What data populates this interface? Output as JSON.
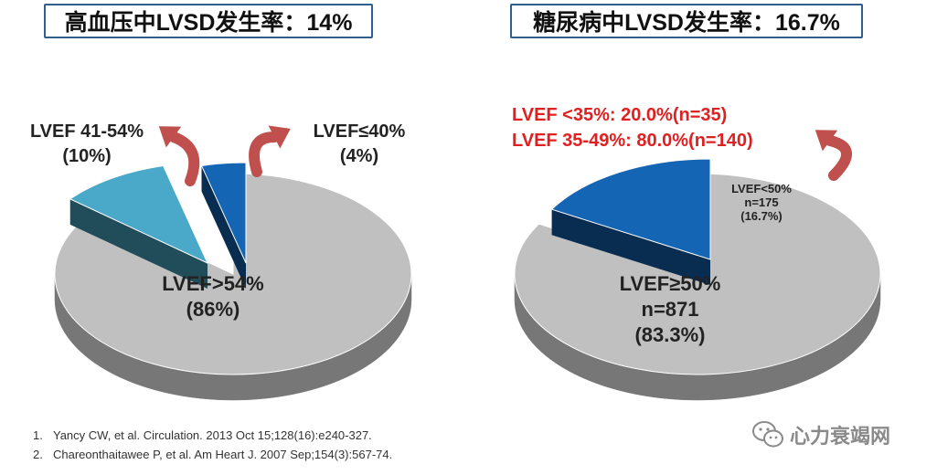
{
  "titles": {
    "left": "高血压中LVSD发生率：14%",
    "right": "糖尿病中LVSD发生率：16.7%"
  },
  "chart_data": [
    {
      "type": "pie",
      "title": "高血压中LVSD发生率：14%",
      "slices": [
        {
          "label_lines": [
            "LVEF>54%",
            "(86%)"
          ],
          "value": 86,
          "color": "#c0c0c0",
          "exploded": false
        },
        {
          "label_lines": [
            "LVEF 41-54%",
            "(10%)"
          ],
          "value": 10,
          "color": "#4aa8c8",
          "exploded": true
        },
        {
          "label_lines": [
            "LVEF≤40%",
            "(4%)"
          ],
          "value": 4,
          "color": "#1565b5",
          "exploded": true
        }
      ]
    },
    {
      "type": "pie",
      "title": "糖尿病中LVSD发生率：16.7%",
      "slices": [
        {
          "label_lines": [
            "LVEF≥50%",
            "n=871",
            "(83.3%)"
          ],
          "value": 83.3,
          "n": 871,
          "color": "#c0c0c0",
          "exploded": false
        },
        {
          "label_lines": [
            "LVEF<50%",
            "n=175",
            "(16.7%)"
          ],
          "value": 16.7,
          "n": 175,
          "color": "#1565b5",
          "exploded": true
        }
      ],
      "annotation_lines": [
        "LVEF <35%: 20.0%(n=35)",
        "LVEF 35-49%: 80.0%(n=140)"
      ],
      "annotation_color": "#e02020"
    }
  ],
  "references": [
    {
      "num": "1.",
      "text": "Yancy CW, et al. Circulation. 2013 Oct 15;128(16):e240-327."
    },
    {
      "num": "2.",
      "text": "Chareonthaitawee P, et al. Am Heart J. 2007 Sep;154(3):567-74."
    }
  ],
  "watermark": {
    "text": "心力衰竭网",
    "icon": "wechat-icon"
  }
}
